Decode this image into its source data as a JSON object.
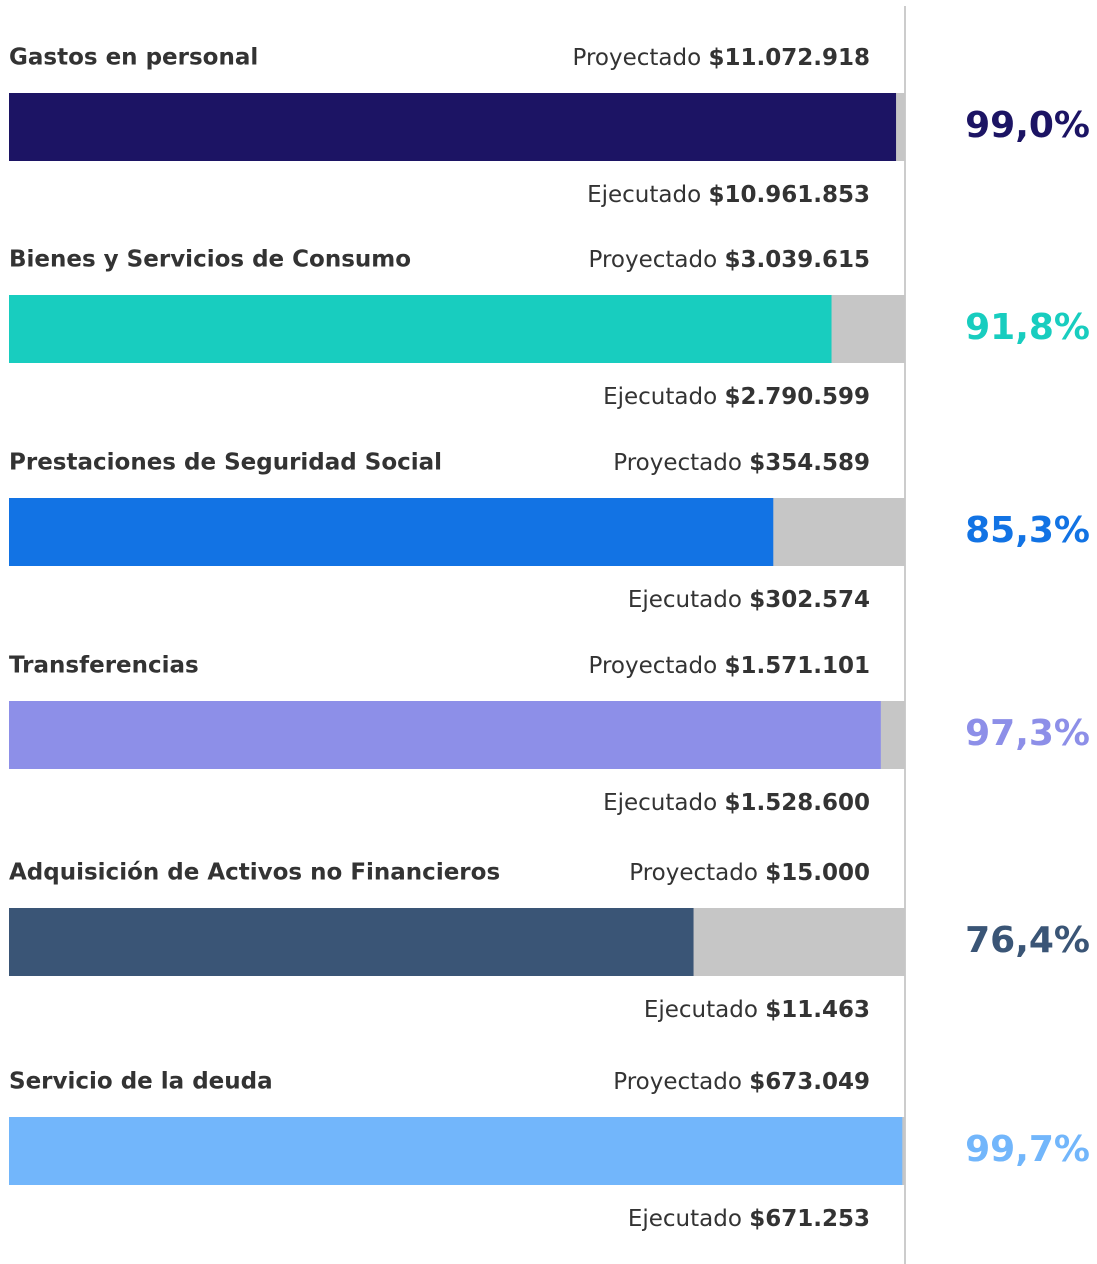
{
  "chart_data": {
    "type": "progress",
    "categories": [
      "Gastos en personal",
      "Bienes y Servicios de Consumo",
      "Prestaciones de Seguridad Social",
      "Transferencias",
      "Adquisición de Activos no Financieros",
      "Servicio de la deuda"
    ],
    "values": [
      99.0,
      91.8,
      85.3,
      97.3,
      76.4,
      99.7
    ],
    "value_labels": [
      "99,0%",
      "91,8%",
      "85,3%",
      "97,3%",
      "76,4%",
      "99,7%"
    ],
    "colors": [
      "#1c1464",
      "#18cdbf",
      "#1273e4",
      "#8d8fe8",
      "#3a5576",
      "#72b6fb"
    ],
    "track_color": "#c6c6c6",
    "xlim": [
      0,
      100
    ],
    "projected_label": "Proyectado",
    "executed_label": "Ejecutado",
    "projected_labels": [
      "$11.072.918",
      "$3.039.615",
      "$354.589",
      "$1.571.101",
      "$15.000",
      "$673.049"
    ],
    "executed_labels": [
      "$10.961.853",
      "$2.790.599",
      "$302.574",
      "$1.528.600",
      "$11.463",
      "$671.253"
    ]
  }
}
